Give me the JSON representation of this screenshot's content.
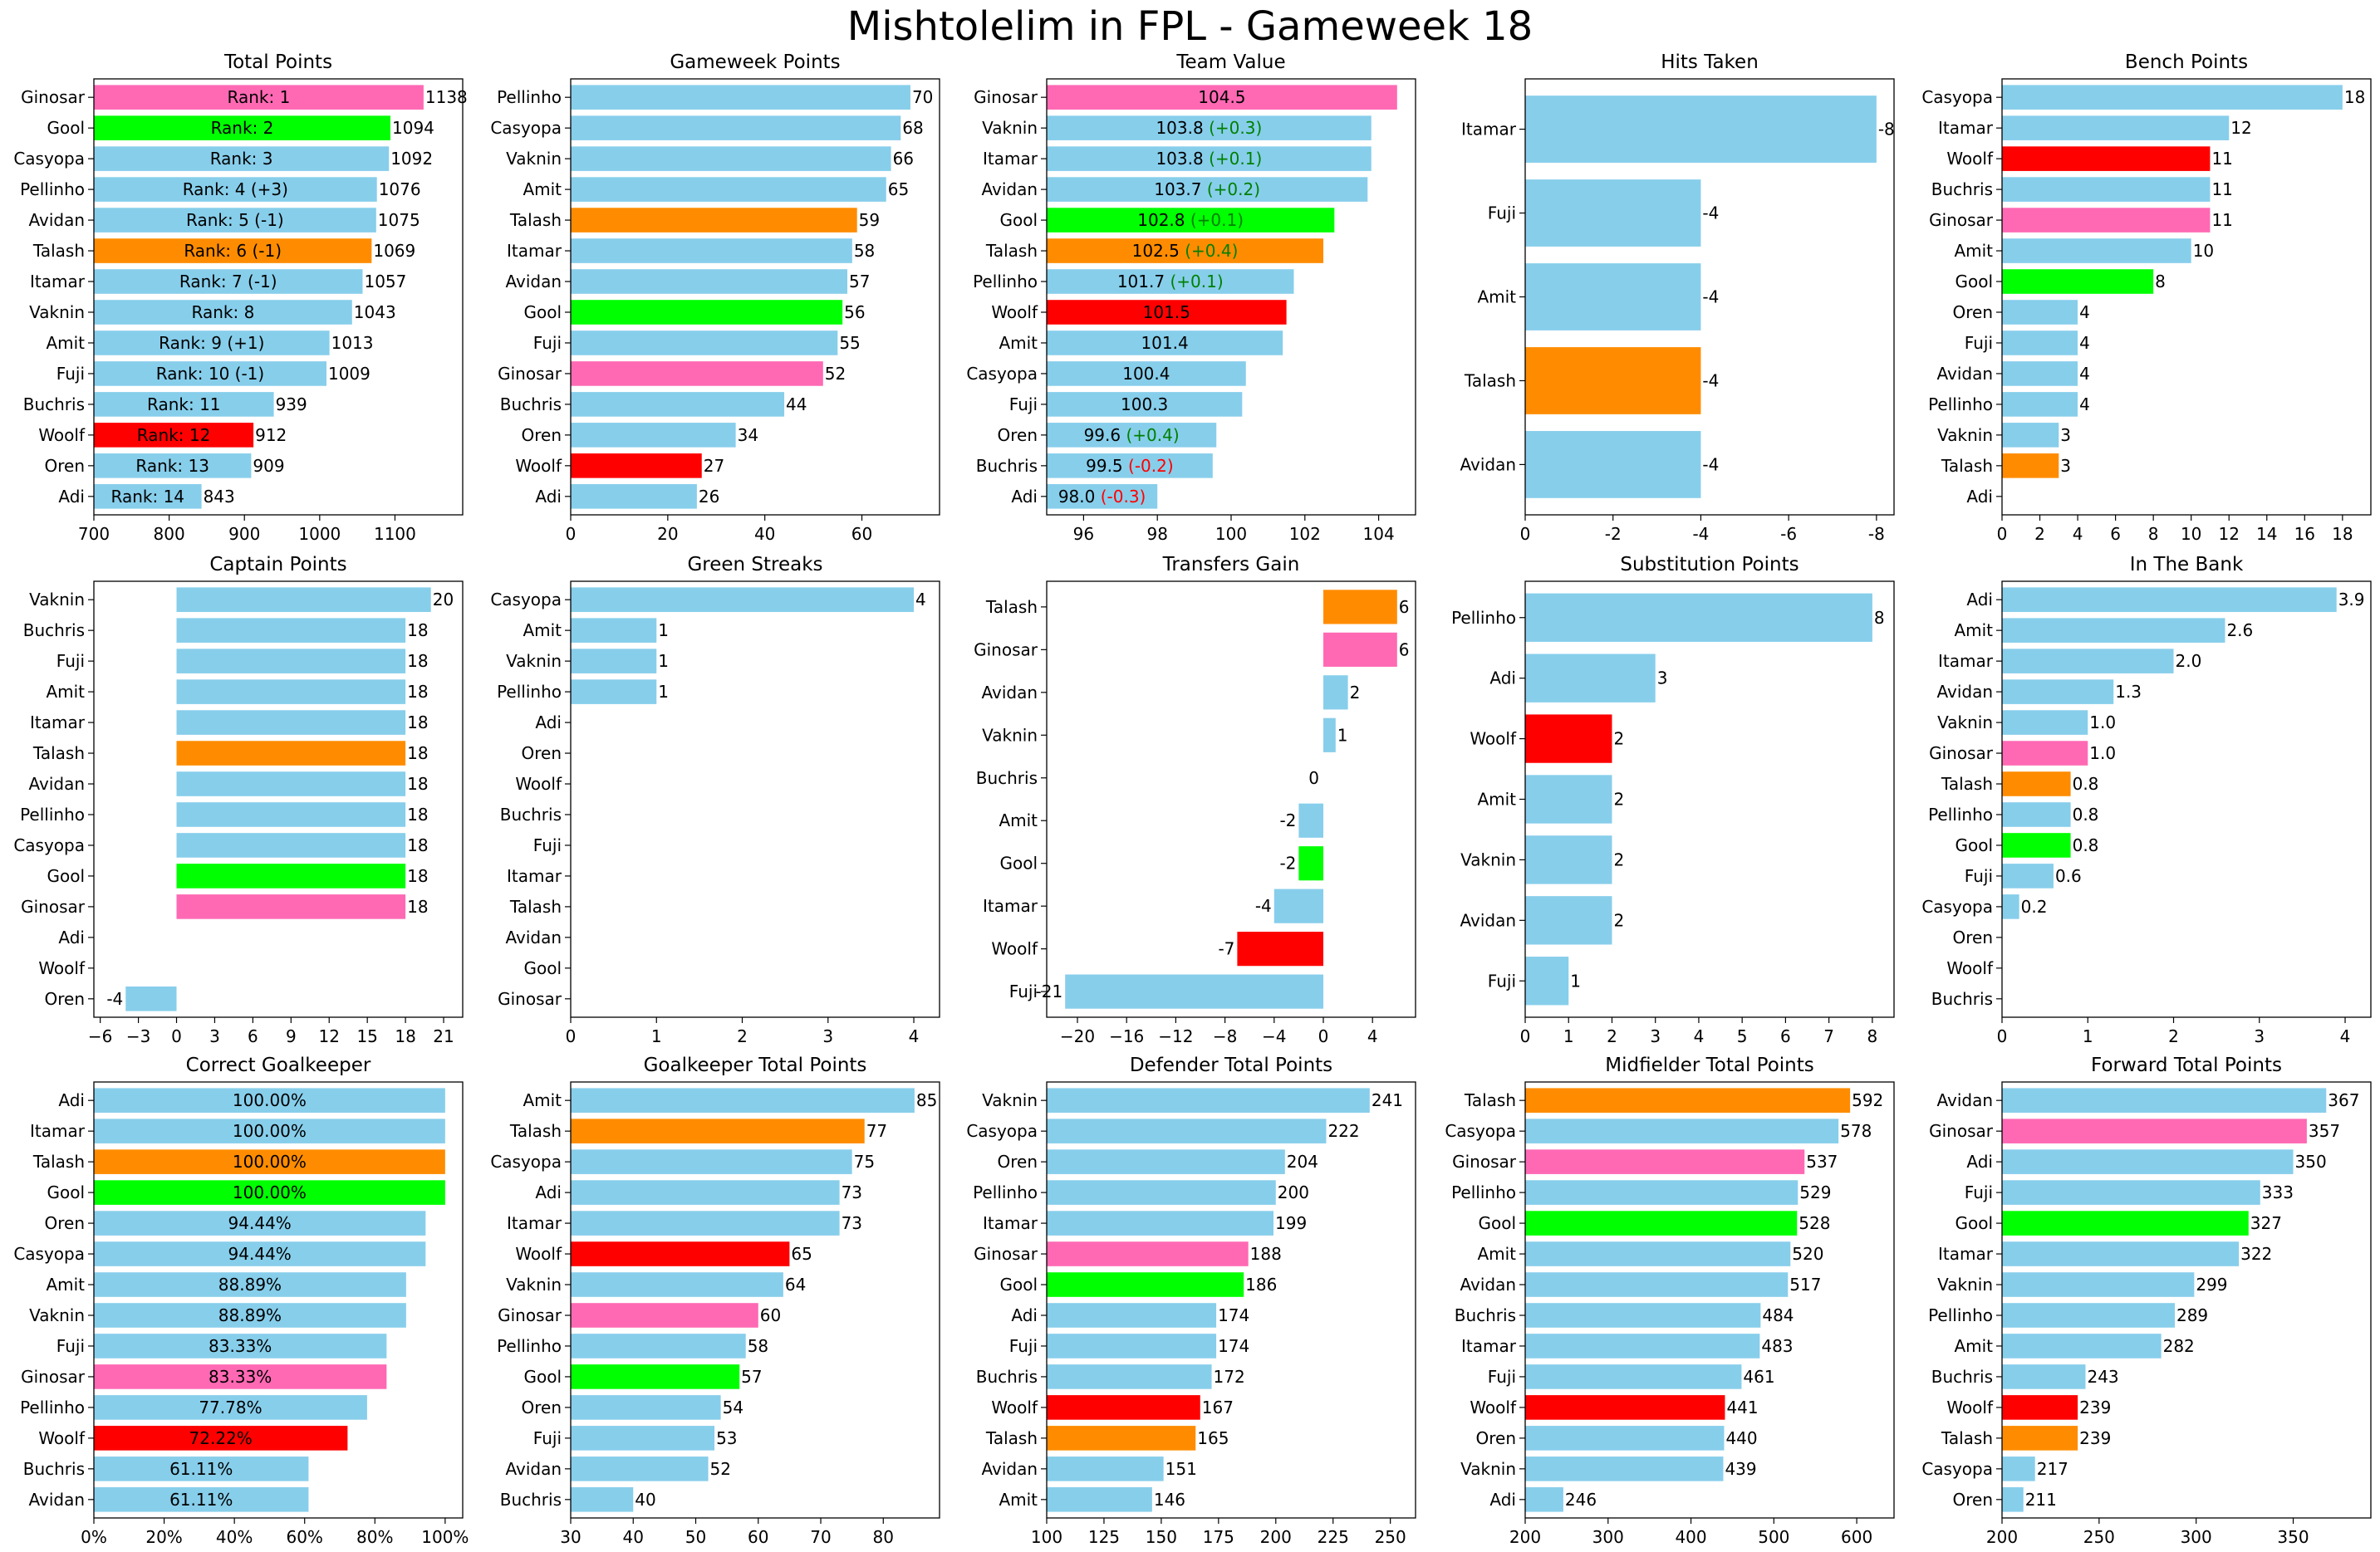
{
  "title": "Mishtolelim in FPL - Gameweek 18",
  "colors": {
    "default": "#87CEEB",
    "Ginosar": "#FF69B4",
    "Gool": "#00FF00",
    "Talash": "#FF8C00",
    "Woolf": "#FF0000"
  },
  "chart_data": [
    {
      "type": "bar",
      "orientation": "horizontal",
      "title": "Total Points",
      "categories": [
        "Ginosar",
        "Gool",
        "Casyopa",
        "Pellinho",
        "Avidan",
        "Talash",
        "Itamar",
        "Vaknin",
        "Amit",
        "Fuji",
        "Buchris",
        "Woolf",
        "Oren",
        "Adi"
      ],
      "values": [
        1138,
        1094,
        1092,
        1076,
        1075,
        1069,
        1057,
        1043,
        1013,
        1009,
        939,
        912,
        909,
        843
      ],
      "value_labels": [
        "1138",
        "1094",
        "1092",
        "1076",
        "1075",
        "1069",
        "1057",
        "1043",
        "1013",
        "1009",
        "939",
        "912",
        "909",
        "843"
      ],
      "inner_labels": [
        "Rank: 1",
        "Rank: 2",
        "Rank: 3",
        "Rank: 4 (+3)",
        "Rank: 5 (-1)",
        "Rank: 6 (-1)",
        "Rank: 7 (-1)",
        "Rank: 8",
        "Rank: 9 (+1)",
        "Rank: 10 (-1)",
        "Rank: 11",
        "Rank: 12",
        "Rank: 13",
        "Rank: 14"
      ],
      "xlim": [
        700,
        1190
      ],
      "xticks": [
        700,
        800,
        900,
        1000,
        1100
      ],
      "xtick_labels": [
        "700",
        "800",
        "900",
        "1000",
        "1100"
      ]
    },
    {
      "type": "bar",
      "orientation": "horizontal",
      "title": "Gameweek Points",
      "categories": [
        "Pellinho",
        "Casyopa",
        "Vaknin",
        "Amit",
        "Talash",
        "Itamar",
        "Avidan",
        "Gool",
        "Fuji",
        "Ginosar",
        "Buchris",
        "Oren",
        "Woolf",
        "Adi"
      ],
      "values": [
        70,
        68,
        66,
        65,
        59,
        58,
        57,
        56,
        55,
        52,
        44,
        34,
        27,
        26
      ],
      "value_labels": [
        "70",
        "68",
        "66",
        "65",
        "59",
        "58",
        "57",
        "56",
        "55",
        "52",
        "44",
        "34",
        "27",
        "26"
      ],
      "xlim": [
        0,
        76
      ],
      "xticks": [
        0,
        20,
        40,
        60
      ],
      "xtick_labels": [
        "0",
        "20",
        "40",
        "60"
      ]
    },
    {
      "type": "bar",
      "orientation": "horizontal",
      "title": "Team Value",
      "categories": [
        "Ginosar",
        "Vaknin",
        "Itamar",
        "Avidan",
        "Gool",
        "Talash",
        "Pellinho",
        "Woolf",
        "Amit",
        "Casyopa",
        "Fuji",
        "Oren",
        "Buchris",
        "Adi"
      ],
      "values": [
        104.5,
        103.8,
        103.8,
        103.7,
        102.8,
        102.5,
        101.7,
        101.5,
        101.4,
        100.4,
        100.3,
        99.6,
        99.5,
        98.0
      ],
      "inner_labels": [
        "104.5",
        "103.8",
        "103.8",
        "103.7",
        "102.8",
        "102.5",
        "101.7",
        "101.5",
        "101.4",
        "100.4",
        "100.3",
        "99.6",
        "99.5",
        "98.0"
      ],
      "change_labels": [
        "",
        "(+0.3)",
        "(+0.1)",
        "(+0.2)",
        "(+0.1)",
        "(+0.4)",
        "(+0.1)",
        "",
        "",
        "",
        "",
        "(+0.4)",
        "(-0.2)",
        "(-0.3)"
      ],
      "change_colors": [
        "",
        "#008000",
        "#008000",
        "#008000",
        "#008000",
        "#008000",
        "#008000",
        "",
        "",
        "",
        "",
        "#008000",
        "#FF0000",
        "#FF0000"
      ],
      "xlim": [
        95,
        105
      ],
      "xticks": [
        96,
        98,
        100,
        102,
        104
      ],
      "xtick_labels": [
        "96",
        "98",
        "100",
        "102",
        "104"
      ]
    },
    {
      "type": "bar",
      "orientation": "horizontal",
      "title": "Hits Taken",
      "categories": [
        "Itamar",
        "Fuji",
        "Amit",
        "Talash",
        "Avidan"
      ],
      "values": [
        8,
        4,
        4,
        4,
        4
      ],
      "value_labels": [
        "-8",
        "-4",
        "-4",
        "-4",
        "-4"
      ],
      "xlim": [
        0,
        8.4
      ],
      "xticks": [
        0,
        2,
        4,
        6,
        8
      ],
      "xtick_labels": [
        "0",
        "-2",
        "-4",
        "-6",
        "-8"
      ]
    },
    {
      "type": "bar",
      "orientation": "horizontal",
      "title": "Bench Points",
      "categories": [
        "Casyopa",
        "Itamar",
        "Woolf",
        "Buchris",
        "Ginosar",
        "Amit",
        "Gool",
        "Oren",
        "Fuji",
        "Avidan",
        "Pellinho",
        "Vaknin",
        "Talash",
        "Adi"
      ],
      "values": [
        18,
        12,
        11,
        11,
        11,
        10,
        8,
        4,
        4,
        4,
        4,
        3,
        3,
        0
      ],
      "value_labels": [
        "18",
        "12",
        "11",
        "11",
        "11",
        "10",
        "8",
        "4",
        "4",
        "4",
        "4",
        "3",
        "3",
        ""
      ],
      "xlim": [
        0,
        19.5
      ],
      "xticks": [
        0,
        2,
        4,
        6,
        8,
        10,
        12,
        14,
        16,
        18
      ],
      "xtick_labels": [
        "0",
        "2",
        "4",
        "6",
        "8",
        "10",
        "12",
        "14",
        "16",
        "18"
      ]
    },
    {
      "type": "bar",
      "orientation": "horizontal",
      "title": "Captain Points",
      "categories": [
        "Vaknin",
        "Buchris",
        "Fuji",
        "Amit",
        "Itamar",
        "Talash",
        "Avidan",
        "Pellinho",
        "Casyopa",
        "Gool",
        "Ginosar",
        "Adi",
        "Woolf",
        "Oren"
      ],
      "values": [
        20,
        18,
        18,
        18,
        18,
        18,
        18,
        18,
        18,
        18,
        18,
        0,
        0,
        -4
      ],
      "value_labels": [
        "20",
        "18",
        "18",
        "18",
        "18",
        "18",
        "18",
        "18",
        "18",
        "18",
        "18",
        "",
        "",
        "-4"
      ],
      "xlim": [
        -6.5,
        22.5
      ],
      "xticks": [
        -6,
        -3,
        0,
        3,
        6,
        9,
        12,
        15,
        18,
        21
      ],
      "xtick_labels": [
        "−6",
        "−3",
        "0",
        "3",
        "6",
        "9",
        "12",
        "15",
        "18",
        "21"
      ]
    },
    {
      "type": "bar",
      "orientation": "horizontal",
      "title": "Green Streaks",
      "categories": [
        "Casyopa",
        "Amit",
        "Vaknin",
        "Pellinho",
        "Adi",
        "Oren",
        "Woolf",
        "Buchris",
        "Fuji",
        "Itamar",
        "Talash",
        "Avidan",
        "Gool",
        "Ginosar"
      ],
      "values": [
        4,
        1,
        1,
        1,
        0,
        0,
        0,
        0,
        0,
        0,
        0,
        0,
        0,
        0
      ],
      "value_labels": [
        "4",
        "1",
        "1",
        "1",
        "",
        "",
        "",
        "",
        "",
        "",
        "",
        "",
        "",
        ""
      ],
      "xlim": [
        0,
        4.3
      ],
      "xticks": [
        0,
        1,
        2,
        3,
        4
      ],
      "xtick_labels": [
        "0",
        "1",
        "2",
        "3",
        "4"
      ]
    },
    {
      "type": "bar",
      "orientation": "horizontal",
      "title": "Transfers Gain",
      "categories": [
        "Talash",
        "Ginosar",
        "Avidan",
        "Vaknin",
        "Buchris",
        "Amit",
        "Gool",
        "Itamar",
        "Woolf",
        "Fuji"
      ],
      "values": [
        6,
        6,
        2,
        1,
        0,
        -2,
        -2,
        -4,
        -7,
        -21
      ],
      "value_labels": [
        "6",
        "6",
        "2",
        "1",
        "0",
        "-2",
        "-2",
        "-4",
        "-7",
        "-21"
      ],
      "xlim": [
        -22.5,
        7.5
      ],
      "xticks": [
        -20,
        -16,
        -12,
        -8,
        -4,
        0,
        4
      ],
      "xtick_labels": [
        "−20",
        "−16",
        "−12",
        "−8",
        "−4",
        "0",
        "4"
      ]
    },
    {
      "type": "bar",
      "orientation": "horizontal",
      "title": "Substitution Points",
      "categories": [
        "Pellinho",
        "Adi",
        "Woolf",
        "Amit",
        "Vaknin",
        "Avidan",
        "Fuji"
      ],
      "values": [
        8,
        3,
        2,
        2,
        2,
        2,
        1
      ],
      "value_labels": [
        "8",
        "3",
        "2",
        "2",
        "2",
        "2",
        "1"
      ],
      "xlim": [
        0,
        8.5
      ],
      "xticks": [
        0,
        1,
        2,
        3,
        4,
        5,
        6,
        7,
        8
      ],
      "xtick_labels": [
        "0",
        "1",
        "2",
        "3",
        "4",
        "5",
        "6",
        "7",
        "8"
      ]
    },
    {
      "type": "bar",
      "orientation": "horizontal",
      "title": "In The Bank",
      "categories": [
        "Adi",
        "Amit",
        "Itamar",
        "Avidan",
        "Vaknin",
        "Ginosar",
        "Talash",
        "Pellinho",
        "Gool",
        "Fuji",
        "Casyopa",
        "Oren",
        "Woolf",
        "Buchris"
      ],
      "values": [
        3.9,
        2.6,
        2.0,
        1.3,
        1.0,
        1.0,
        0.8,
        0.8,
        0.8,
        0.6,
        0.2,
        0,
        0,
        0
      ],
      "value_labels": [
        "3.9",
        "2.6",
        "2.0",
        "1.3",
        "1.0",
        "1.0",
        "0.8",
        "0.8",
        "0.8",
        "0.6",
        "0.2",
        "",
        "",
        ""
      ],
      "xlim": [
        0,
        4.3
      ],
      "xticks": [
        0,
        1,
        2,
        3,
        4
      ],
      "xtick_labels": [
        "0",
        "1",
        "2",
        "3",
        "4"
      ]
    },
    {
      "type": "bar",
      "orientation": "horizontal",
      "title": "Correct Goalkeeper",
      "categories": [
        "Adi",
        "Itamar",
        "Talash",
        "Gool",
        "Oren",
        "Casyopa",
        "Amit",
        "Vaknin",
        "Fuji",
        "Ginosar",
        "Pellinho",
        "Woolf",
        "Buchris",
        "Avidan"
      ],
      "values": [
        100,
        100,
        100,
        100,
        94.44,
        94.44,
        88.89,
        88.89,
        83.33,
        83.33,
        77.78,
        72.22,
        61.11,
        61.11
      ],
      "inner_labels": [
        "100.00%",
        "100.00%",
        "100.00%",
        "100.00%",
        "94.44%",
        "94.44%",
        "88.89%",
        "88.89%",
        "83.33%",
        "83.33%",
        "77.78%",
        "72.22%",
        "61.11%",
        "61.11%"
      ],
      "xlim": [
        0,
        105
      ],
      "xticks": [
        0,
        20,
        40,
        60,
        80,
        100
      ],
      "xtick_labels": [
        "0%",
        "20%",
        "40%",
        "60%",
        "80%",
        "100%"
      ]
    },
    {
      "type": "bar",
      "orientation": "horizontal",
      "title": "Goalkeeper Total Points",
      "categories": [
        "Amit",
        "Talash",
        "Casyopa",
        "Adi",
        "Itamar",
        "Woolf",
        "Vaknin",
        "Ginosar",
        "Pellinho",
        "Gool",
        "Oren",
        "Fuji",
        "Avidan",
        "Buchris"
      ],
      "values": [
        85,
        77,
        75,
        73,
        73,
        65,
        64,
        60,
        58,
        57,
        54,
        53,
        52,
        40
      ],
      "value_labels": [
        "85",
        "77",
        "75",
        "73",
        "73",
        "65",
        "64",
        "60",
        "58",
        "57",
        "54",
        "53",
        "52",
        "40"
      ],
      "xlim": [
        30,
        89
      ],
      "xticks": [
        30,
        40,
        50,
        60,
        70,
        80
      ],
      "xtick_labels": [
        "30",
        "40",
        "50",
        "60",
        "70",
        "80"
      ]
    },
    {
      "type": "bar",
      "orientation": "horizontal",
      "title": "Defender Total Points",
      "categories": [
        "Vaknin",
        "Casyopa",
        "Oren",
        "Pellinho",
        "Itamar",
        "Ginosar",
        "Gool",
        "Adi",
        "Fuji",
        "Buchris",
        "Woolf",
        "Talash",
        "Avidan",
        "Amit"
      ],
      "values": [
        241,
        222,
        204,
        200,
        199,
        188,
        186,
        174,
        174,
        172,
        167,
        165,
        151,
        146
      ],
      "value_labels": [
        "241",
        "222",
        "204",
        "200",
        "199",
        "188",
        "186",
        "174",
        "174",
        "172",
        "167",
        "165",
        "151",
        "146"
      ],
      "xlim": [
        100,
        261
      ],
      "xticks": [
        100,
        125,
        150,
        175,
        200,
        225,
        250
      ],
      "xtick_labels": [
        "100",
        "125",
        "150",
        "175",
        "200",
        "225",
        "250"
      ]
    },
    {
      "type": "bar",
      "orientation": "horizontal",
      "title": "Midfielder Total Points",
      "categories": [
        "Talash",
        "Casyopa",
        "Ginosar",
        "Pellinho",
        "Gool",
        "Amit",
        "Avidan",
        "Buchris",
        "Itamar",
        "Fuji",
        "Woolf",
        "Oren",
        "Vaknin",
        "Adi"
      ],
      "values": [
        592,
        578,
        537,
        529,
        528,
        520,
        517,
        484,
        483,
        461,
        441,
        440,
        439,
        246
      ],
      "value_labels": [
        "592",
        "578",
        "537",
        "529",
        "528",
        "520",
        "517",
        "484",
        "483",
        "461",
        "441",
        "440",
        "439",
        "246"
      ],
      "xlim": [
        200,
        645
      ],
      "xticks": [
        200,
        300,
        400,
        500,
        600
      ],
      "xtick_labels": [
        "200",
        "300",
        "400",
        "500",
        "600"
      ]
    },
    {
      "type": "bar",
      "orientation": "horizontal",
      "title": "Forward Total Points",
      "categories": [
        "Avidan",
        "Ginosar",
        "Adi",
        "Fuji",
        "Gool",
        "Itamar",
        "Vaknin",
        "Pellinho",
        "Amit",
        "Buchris",
        "Woolf",
        "Talash",
        "Casyopa",
        "Oren"
      ],
      "values": [
        367,
        357,
        350,
        333,
        327,
        322,
        299,
        289,
        282,
        243,
        239,
        239,
        217,
        211
      ],
      "value_labels": [
        "367",
        "357",
        "350",
        "333",
        "327",
        "322",
        "299",
        "289",
        "282",
        "243",
        "239",
        "239",
        "217",
        "211"
      ],
      "xlim": [
        200,
        390
      ],
      "xticks": [
        200,
        250,
        300,
        350
      ],
      "xtick_labels": [
        "200",
        "250",
        "300",
        "350"
      ]
    }
  ]
}
